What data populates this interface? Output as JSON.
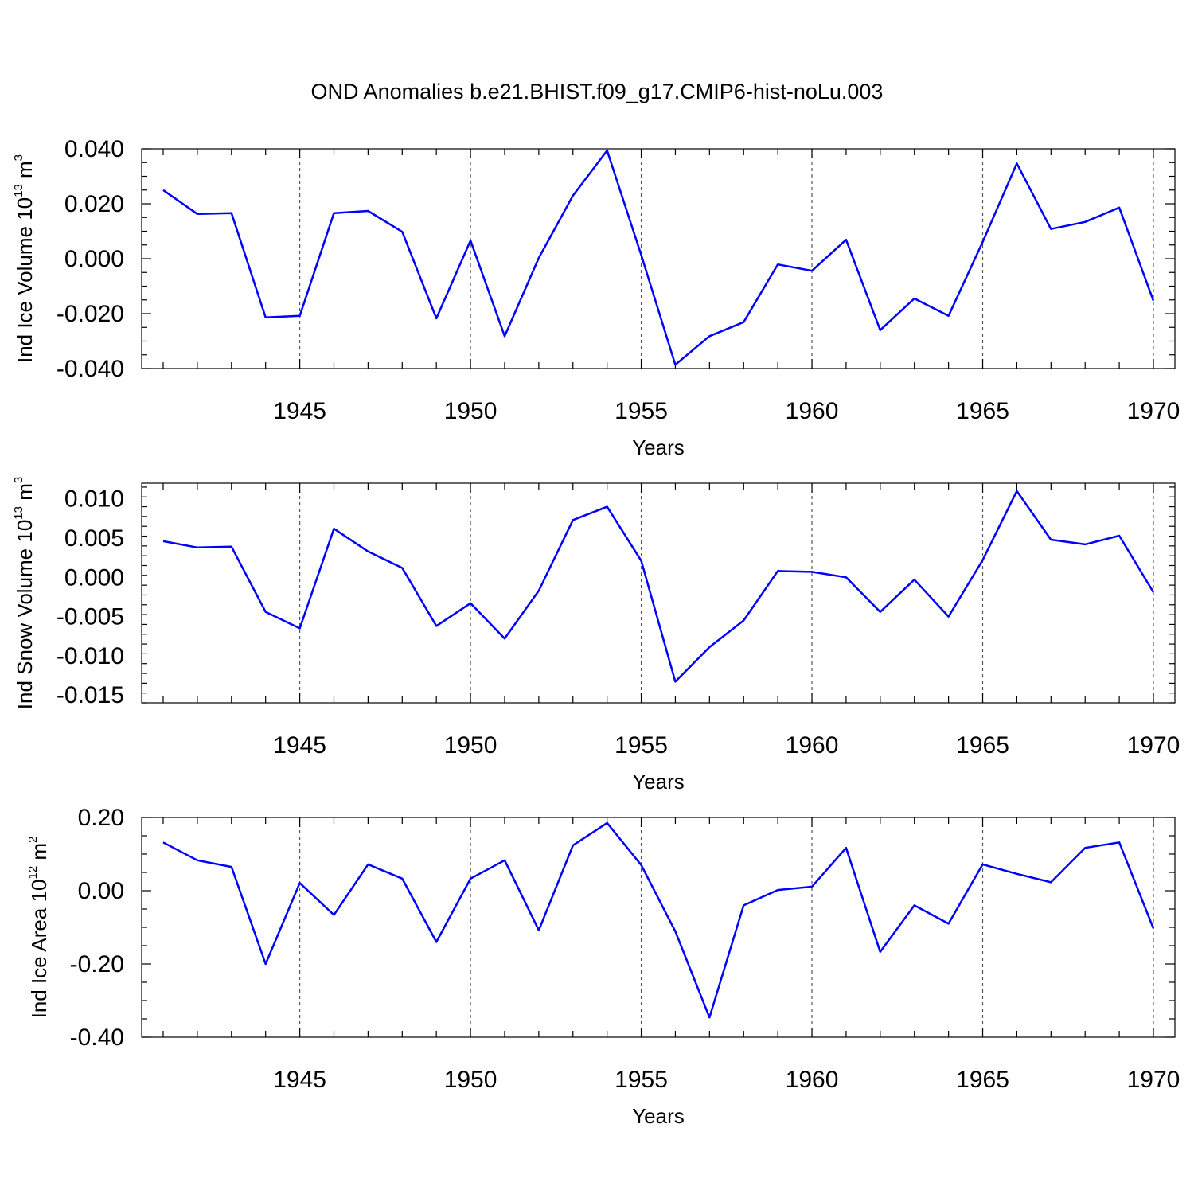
{
  "figure_title": "OND Anomalies b.e21.BHIST.f09_g17.CMIP6-hist-noLu.003",
  "series_color": "#0000ff",
  "chart_data": [
    {
      "type": "line",
      "ylabel_text": "Ind Ice Volume 10",
      "ylabel_exp": "13",
      "ylabel_unit": " m",
      "ylabel_unit_exp": "3",
      "xlabel": "Years",
      "xlim": [
        1941,
        1970
      ],
      "ylim": [
        -0.04,
        0.04
      ],
      "yticks": [
        "0.040",
        "0.020",
        "0.000",
        "-0.020",
        "-0.040"
      ],
      "xticks": [
        "1945",
        "1950",
        "1955",
        "1960",
        "1965",
        "1970"
      ],
      "x": [
        1941,
        1942,
        1943,
        1944,
        1945,
        1946,
        1947,
        1948,
        1949,
        1950,
        1951,
        1952,
        1953,
        1954,
        1955,
        1956,
        1957,
        1958,
        1959,
        1960,
        1961,
        1962,
        1963,
        1964,
        1965,
        1966,
        1967,
        1968,
        1969,
        1970
      ],
      "values": [
        0.025,
        0.0163,
        0.0166,
        -0.0214,
        -0.0208,
        0.0166,
        0.0174,
        0.0098,
        -0.0217,
        0.0066,
        -0.0282,
        0.0003,
        0.023,
        0.0394,
        0.0013,
        -0.0386,
        -0.0282,
        -0.0231,
        -0.0021,
        -0.0044,
        0.0069,
        -0.026,
        -0.0145,
        -0.0208,
        0.0061,
        0.0347,
        0.0108,
        0.0134,
        0.0186,
        -0.0153
      ]
    },
    {
      "type": "line",
      "ylabel_text": "Ind Snow Volume 10",
      "ylabel_exp": "13",
      "ylabel_unit": " m",
      "ylabel_unit_exp": "3",
      "xlabel": "Years",
      "xlim": [
        1941,
        1970
      ],
      "ylim": [
        -0.016,
        0.012
      ],
      "yticks": [
        "0.010",
        "0.005",
        "0.000",
        "-0.005",
        "-0.010",
        "-0.015"
      ],
      "xticks": [
        "1945",
        "1950",
        "1955",
        "1960",
        "1965",
        "1970"
      ],
      "x": [
        1941,
        1942,
        1943,
        1944,
        1945,
        1946,
        1947,
        1948,
        1949,
        1950,
        1951,
        1952,
        1953,
        1954,
        1955,
        1956,
        1957,
        1958,
        1959,
        1960,
        1961,
        1962,
        1963,
        1964,
        1965,
        1966,
        1967,
        1968,
        1969,
        1970
      ],
      "values": [
        0.0046,
        0.0038,
        0.0039,
        -0.0044,
        -0.0065,
        0.0062,
        0.0033,
        0.0012,
        -0.0062,
        -0.0033,
        -0.0078,
        -0.0017,
        0.0073,
        0.009,
        0.0021,
        -0.0133,
        -0.0089,
        -0.0055,
        0.0008,
        0.0007,
        0.0,
        -0.0044,
        -0.0003,
        -0.005,
        0.0022,
        0.011,
        0.0048,
        0.0042,
        0.0053,
        -0.0019
      ]
    },
    {
      "type": "line",
      "ylabel_text": "Ind Ice Area 10",
      "ylabel_exp": "12",
      "ylabel_unit": " m",
      "ylabel_unit_exp": "2",
      "xlabel": "Years",
      "xlim": [
        1941,
        1970
      ],
      "ylim": [
        -0.4,
        0.2
      ],
      "yticks": [
        "0.20",
        "0.00",
        "-0.20",
        "-0.40"
      ],
      "xticks": [
        "1945",
        "1950",
        "1955",
        "1960",
        "1965",
        "1970"
      ],
      "x": [
        1941,
        1942,
        1943,
        1944,
        1945,
        1946,
        1947,
        1948,
        1949,
        1950,
        1951,
        1952,
        1953,
        1954,
        1955,
        1956,
        1957,
        1958,
        1959,
        1960,
        1961,
        1962,
        1963,
        1964,
        1965,
        1966,
        1967,
        1968,
        1969,
        1970
      ],
      "values": [
        0.132,
        0.083,
        0.065,
        -0.2,
        0.021,
        -0.066,
        0.072,
        0.033,
        -0.14,
        0.033,
        0.083,
        -0.108,
        0.124,
        0.185,
        0.07,
        -0.111,
        -0.346,
        -0.04,
        0.002,
        0.011,
        0.117,
        -0.167,
        -0.04,
        -0.09,
        0.072,
        0.046,
        0.023,
        0.117,
        0.132,
        -0.103
      ]
    }
  ]
}
